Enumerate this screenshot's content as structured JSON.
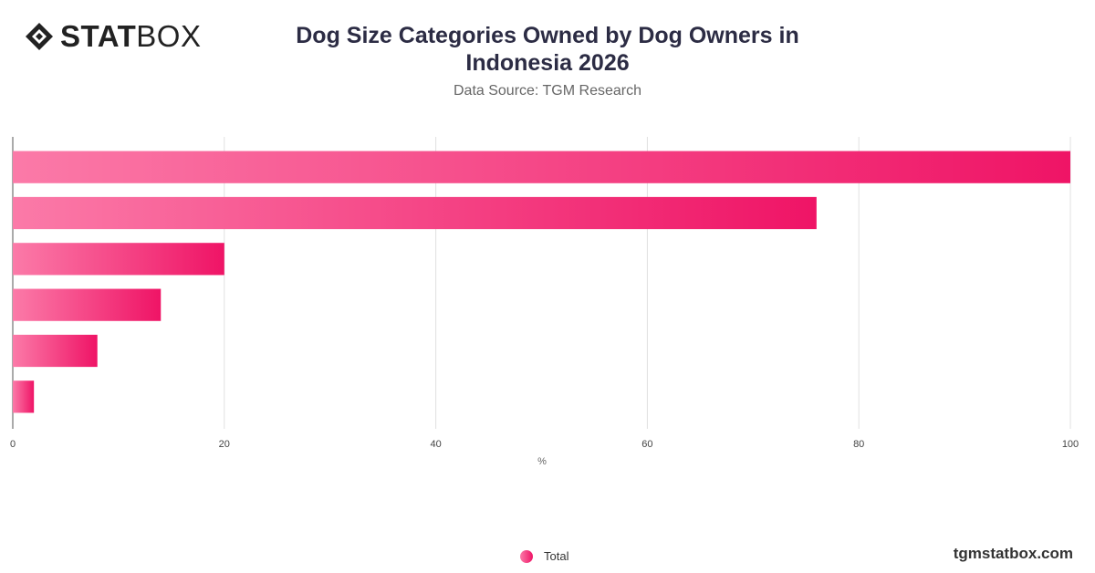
{
  "brand": {
    "logo_bold": "STAT",
    "logo_light": "BOX",
    "watermark": "tgmstatbox.com"
  },
  "chart_data": {
    "type": "bar",
    "orientation": "horizontal",
    "title": "Dog Size Categories Owned by Dog Owners in Indonesia 2026",
    "subtitle": "Data Source: TGM Research",
    "xlabel": "%",
    "ylabel": "",
    "xlim": [
      0,
      100
    ],
    "xticks": [
      0,
      20,
      40,
      60,
      80,
      100
    ],
    "categories": [
      "",
      "",
      "",
      "",
      "",
      ""
    ],
    "series": [
      {
        "name": "Total",
        "values": [
          100,
          76,
          20,
          14,
          8,
          2
        ]
      }
    ],
    "grid": true,
    "legend_position": "bottom-center",
    "colors": {
      "bar_start": "#fb7aa8",
      "bar_end": "#ef1466"
    }
  }
}
